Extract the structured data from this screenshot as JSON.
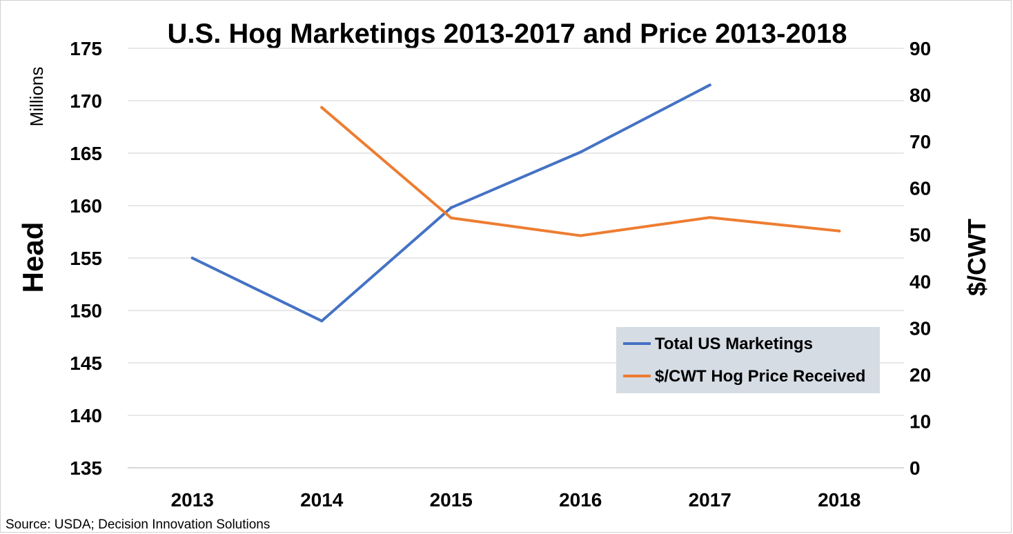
{
  "chart_data": {
    "type": "line",
    "title": "U.S. Hog Marketings 2013-2017 and Price 2013-2018",
    "categories": [
      "2013",
      "2014",
      "2015",
      "2016",
      "2017",
      "2018"
    ],
    "y_left": {
      "label": "Head",
      "unit_label": "Millions",
      "range": [
        135,
        175
      ],
      "ticks": [
        135,
        140,
        145,
        150,
        155,
        160,
        165,
        170,
        175
      ]
    },
    "y_right": {
      "label": "$/CWT",
      "range": [
        0,
        90
      ],
      "ticks": [
        0,
        10,
        20,
        30,
        40,
        50,
        60,
        70,
        80,
        90
      ]
    },
    "grid": true,
    "legend_position": "bottom-right",
    "series": [
      {
        "name": "Total US Marketings",
        "axis": "left",
        "color": "#4472C4",
        "values": [
          155.0,
          149.0,
          159.8,
          165.1,
          171.5,
          null
        ]
      },
      {
        "name": "$/CWT Hog Price Received",
        "axis": "right",
        "color": "#ED7D31",
        "values": [
          null,
          77.3,
          53.6,
          49.8,
          53.7,
          50.8
        ]
      }
    ],
    "source": "Source: USDA; Decision Innovation Solutions"
  }
}
